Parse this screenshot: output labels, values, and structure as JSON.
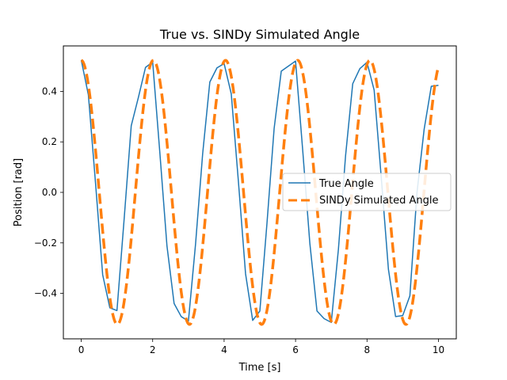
{
  "chart_data": {
    "type": "line",
    "title": "True vs. SINDy Simulated Angle",
    "xlabel": "Time [s]",
    "ylabel": "Position [rad]",
    "xlim": [
      -0.5,
      10.5
    ],
    "ylim": [
      -0.58,
      0.58
    ],
    "x_ticks": [
      0,
      2,
      4,
      6,
      8,
      10
    ],
    "x_tick_labels": [
      "0",
      "2",
      "4",
      "6",
      "8",
      "10"
    ],
    "y_ticks": [
      -0.4,
      -0.2,
      0.0,
      0.2,
      0.4
    ],
    "y_tick_labels": [
      "−0.4",
      "−0.2",
      "0.0",
      "0.2",
      "0.4"
    ],
    "grid": false,
    "legend_position": "center-right",
    "series": [
      {
        "name": "True Angle",
        "color": "#1f77b4",
        "style": "solid",
        "x": [
          0.0,
          0.2,
          0.4,
          0.6,
          0.8,
          1.0,
          1.2,
          1.4,
          1.6,
          1.8,
          2.0,
          2.2,
          2.4,
          2.6,
          2.8,
          3.0,
          3.2,
          3.4,
          3.6,
          3.8,
          4.0,
          4.2,
          4.4,
          4.6,
          4.8,
          5.0,
          5.2,
          5.4,
          5.6,
          5.8,
          6.0,
          6.2,
          6.4,
          6.6,
          6.8,
          7.0,
          7.2,
          7.4,
          7.6,
          7.8,
          8.0,
          8.2,
          8.4,
          8.6,
          8.8,
          9.0,
          9.2,
          9.4,
          9.6,
          9.8,
          10.0
        ],
        "y": [
          0.524,
          0.386,
          0.037,
          -0.326,
          -0.457,
          -0.468,
          -0.108,
          0.264,
          0.376,
          0.495,
          0.516,
          0.158,
          -0.212,
          -0.44,
          -0.492,
          -0.51,
          -0.205,
          0.154,
          0.437,
          0.493,
          0.51,
          0.39,
          0.043,
          -0.322,
          -0.507,
          -0.47,
          -0.122,
          0.253,
          0.48,
          0.5,
          0.52,
          0.167,
          -0.202,
          -0.47,
          -0.5,
          -0.515,
          -0.225,
          0.145,
          0.43,
          0.49,
          0.515,
          0.405,
          0.058,
          -0.305,
          -0.492,
          -0.488,
          -0.41,
          0.0,
          0.25,
          0.42,
          0.424
        ]
      },
      {
        "name": "SINDy Simulated Angle",
        "color": "#ff7f0e",
        "style": "dashed",
        "x": "sampled",
        "formula_note": "0.523 * cos(2*pi*t/2.02)"
      }
    ]
  }
}
